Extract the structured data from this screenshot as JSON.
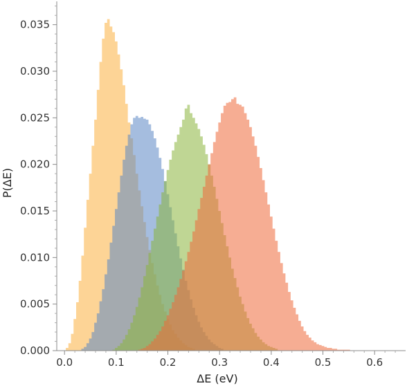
{
  "chart_data": {
    "type": "histogram",
    "title": "",
    "xlabel": "ΔE (eV)",
    "ylabel": "P(ΔE)",
    "xlim": [
      -0.015,
      0.66
    ],
    "ylim": [
      0,
      0.0375
    ],
    "x_ticks": [
      {
        "value": 0.0,
        "label": "0.0"
      },
      {
        "value": 0.1,
        "label": "0.1"
      },
      {
        "value": 0.2,
        "label": "0.2"
      },
      {
        "value": 0.3,
        "label": "0.3"
      },
      {
        "value": 0.4,
        "label": "0.4"
      },
      {
        "value": 0.5,
        "label": "0.5"
      },
      {
        "value": 0.6,
        "label": "0.6"
      }
    ],
    "y_ticks": [
      {
        "value": 0.0,
        "label": "0.000"
      },
      {
        "value": 0.005,
        "label": "0.005"
      },
      {
        "value": 0.01,
        "label": "0.010"
      },
      {
        "value": 0.015,
        "label": "0.015"
      },
      {
        "value": 0.02,
        "label": "0.020"
      },
      {
        "value": 0.025,
        "label": "0.025"
      },
      {
        "value": 0.03,
        "label": "0.030"
      },
      {
        "value": 0.035,
        "label": "0.035"
      }
    ],
    "bin_width": 0.005,
    "opacity": 0.55,
    "series": [
      {
        "color": "#fbb040",
        "bins": [
          [
            0.005,
            0.0003
          ],
          [
            0.01,
            0.0008
          ],
          [
            0.015,
            0.0018
          ],
          [
            0.02,
            0.0034
          ],
          [
            0.025,
            0.0052
          ],
          [
            0.03,
            0.0075
          ],
          [
            0.035,
            0.0102
          ],
          [
            0.04,
            0.0132
          ],
          [
            0.045,
            0.0162
          ],
          [
            0.05,
            0.019
          ],
          [
            0.055,
            0.022
          ],
          [
            0.06,
            0.0248
          ],
          [
            0.065,
            0.028
          ],
          [
            0.07,
            0.031
          ],
          [
            0.075,
            0.0335
          ],
          [
            0.08,
            0.0352
          ],
          [
            0.085,
            0.0356
          ],
          [
            0.09,
            0.0348
          ],
          [
            0.095,
            0.0342
          ],
          [
            0.1,
            0.0332
          ],
          [
            0.105,
            0.0318
          ],
          [
            0.11,
            0.0302
          ],
          [
            0.115,
            0.0285
          ],
          [
            0.12,
            0.0265
          ],
          [
            0.125,
            0.0245
          ],
          [
            0.13,
            0.0228
          ],
          [
            0.135,
            0.021
          ],
          [
            0.14,
            0.019
          ],
          [
            0.145,
            0.0172
          ],
          [
            0.15,
            0.0155
          ],
          [
            0.155,
            0.0138
          ],
          [
            0.16,
            0.0122
          ],
          [
            0.165,
            0.0108
          ],
          [
            0.17,
            0.0094
          ],
          [
            0.175,
            0.0082
          ],
          [
            0.18,
            0.007
          ],
          [
            0.185,
            0.006
          ],
          [
            0.19,
            0.005
          ],
          [
            0.195,
            0.0042
          ],
          [
            0.2,
            0.0034
          ],
          [
            0.205,
            0.0028
          ],
          [
            0.21,
            0.0022
          ],
          [
            0.215,
            0.0018
          ],
          [
            0.22,
            0.0014
          ],
          [
            0.225,
            0.0011
          ],
          [
            0.23,
            0.0008
          ],
          [
            0.235,
            0.0006
          ],
          [
            0.24,
            0.0004
          ],
          [
            0.245,
            0.0003
          ],
          [
            0.25,
            0.0002
          ]
        ]
      },
      {
        "color": "#5b87c5",
        "bins": [
          [
            0.035,
            0.0002
          ],
          [
            0.04,
            0.0004
          ],
          [
            0.045,
            0.0008
          ],
          [
            0.05,
            0.0013
          ],
          [
            0.055,
            0.002
          ],
          [
            0.06,
            0.003
          ],
          [
            0.065,
            0.004
          ],
          [
            0.07,
            0.0053
          ],
          [
            0.075,
            0.0066
          ],
          [
            0.08,
            0.0082
          ],
          [
            0.085,
            0.0098
          ],
          [
            0.09,
            0.0116
          ],
          [
            0.095,
            0.0134
          ],
          [
            0.1,
            0.0152
          ],
          [
            0.105,
            0.017
          ],
          [
            0.11,
            0.0188
          ],
          [
            0.115,
            0.0205
          ],
          [
            0.12,
            0.022
          ],
          [
            0.125,
            0.0232
          ],
          [
            0.13,
            0.0243
          ],
          [
            0.135,
            0.025
          ],
          [
            0.14,
            0.0252
          ],
          [
            0.145,
            0.025
          ],
          [
            0.15,
            0.0251
          ],
          [
            0.155,
            0.0249
          ],
          [
            0.16,
            0.0248
          ],
          [
            0.165,
            0.0243
          ],
          [
            0.17,
            0.0236
          ],
          [
            0.175,
            0.0228
          ],
          [
            0.18,
            0.0218
          ],
          [
            0.185,
            0.0207
          ],
          [
            0.19,
            0.0195
          ],
          [
            0.195,
            0.0182
          ],
          [
            0.2,
            0.0168
          ],
          [
            0.205,
            0.0154
          ],
          [
            0.21,
            0.014
          ],
          [
            0.215,
            0.0126
          ],
          [
            0.22,
            0.0112
          ],
          [
            0.225,
            0.0099
          ],
          [
            0.23,
            0.0087
          ],
          [
            0.235,
            0.0075
          ],
          [
            0.24,
            0.0065
          ],
          [
            0.245,
            0.0055
          ],
          [
            0.25,
            0.0046
          ],
          [
            0.255,
            0.0038
          ],
          [
            0.26,
            0.0031
          ],
          [
            0.265,
            0.0025
          ],
          [
            0.27,
            0.002
          ],
          [
            0.275,
            0.0016
          ],
          [
            0.28,
            0.0012
          ],
          [
            0.285,
            0.0009
          ],
          [
            0.29,
            0.0007
          ],
          [
            0.295,
            0.0005
          ],
          [
            0.3,
            0.0003
          ],
          [
            0.305,
            0.0002
          ]
        ]
      },
      {
        "color": "#8ab43c",
        "bins": [
          [
            0.095,
            0.0001
          ],
          [
            0.1,
            0.0003
          ],
          [
            0.105,
            0.0005
          ],
          [
            0.11,
            0.0008
          ],
          [
            0.115,
            0.0012
          ],
          [
            0.12,
            0.0017
          ],
          [
            0.125,
            0.0023
          ],
          [
            0.13,
            0.003
          ],
          [
            0.135,
            0.0038
          ],
          [
            0.14,
            0.0047
          ],
          [
            0.145,
            0.0057
          ],
          [
            0.15,
            0.0068
          ],
          [
            0.155,
            0.008
          ],
          [
            0.16,
            0.0092
          ],
          [
            0.165,
            0.0105
          ],
          [
            0.17,
            0.0118
          ],
          [
            0.175,
            0.0131
          ],
          [
            0.18,
            0.0144
          ],
          [
            0.185,
            0.0157
          ],
          [
            0.19,
            0.017
          ],
          [
            0.195,
            0.0182
          ],
          [
            0.2,
            0.0194
          ],
          [
            0.205,
            0.0205
          ],
          [
            0.21,
            0.0215
          ],
          [
            0.215,
            0.0224
          ],
          [
            0.22,
            0.0232
          ],
          [
            0.225,
            0.024
          ],
          [
            0.23,
            0.0248
          ],
          [
            0.235,
            0.026
          ],
          [
            0.24,
            0.0264
          ],
          [
            0.245,
            0.0255
          ],
          [
            0.25,
            0.025
          ],
          [
            0.255,
            0.0244
          ],
          [
            0.26,
            0.0238
          ],
          [
            0.265,
            0.023
          ],
          [
            0.27,
            0.0221
          ],
          [
            0.275,
            0.0211
          ],
          [
            0.28,
            0.02
          ],
          [
            0.285,
            0.0188
          ],
          [
            0.29,
            0.0176
          ],
          [
            0.295,
            0.0163
          ],
          [
            0.3,
            0.015
          ],
          [
            0.305,
            0.0137
          ],
          [
            0.31,
            0.0124
          ],
          [
            0.315,
            0.0112
          ],
          [
            0.32,
            0.01
          ],
          [
            0.325,
            0.0088
          ],
          [
            0.33,
            0.0078
          ],
          [
            0.335,
            0.0068
          ],
          [
            0.34,
            0.0058
          ],
          [
            0.345,
            0.005
          ],
          [
            0.35,
            0.0042
          ],
          [
            0.355,
            0.0035
          ],
          [
            0.36,
            0.0029
          ],
          [
            0.365,
            0.0024
          ],
          [
            0.37,
            0.0019
          ],
          [
            0.375,
            0.0015
          ],
          [
            0.38,
            0.0012
          ],
          [
            0.385,
            0.0009
          ],
          [
            0.39,
            0.0007
          ],
          [
            0.395,
            0.0005
          ],
          [
            0.4,
            0.0004
          ],
          [
            0.405,
            0.0003
          ],
          [
            0.41,
            0.0002
          ]
        ]
      },
      {
        "color": "#ef6a3a",
        "bins": [
          [
            0.145,
            0.0001
          ],
          [
            0.15,
            0.0002
          ],
          [
            0.155,
            0.0003
          ],
          [
            0.16,
            0.0005
          ],
          [
            0.165,
            0.0007
          ],
          [
            0.17,
            0.001
          ],
          [
            0.175,
            0.0013
          ],
          [
            0.18,
            0.0017
          ],
          [
            0.185,
            0.0021
          ],
          [
            0.19,
            0.0026
          ],
          [
            0.195,
            0.0032
          ],
          [
            0.2,
            0.0038
          ],
          [
            0.205,
            0.0045
          ],
          [
            0.21,
            0.0052
          ],
          [
            0.215,
            0.006
          ],
          [
            0.22,
            0.0068
          ],
          [
            0.225,
            0.0077
          ],
          [
            0.23,
            0.0086
          ],
          [
            0.235,
            0.0096
          ],
          [
            0.24,
            0.0106
          ],
          [
            0.245,
            0.0117
          ],
          [
            0.25,
            0.0128
          ],
          [
            0.255,
            0.014
          ],
          [
            0.26,
            0.0152
          ],
          [
            0.265,
            0.0164
          ],
          [
            0.27,
            0.0176
          ],
          [
            0.275,
            0.0188
          ],
          [
            0.28,
            0.02
          ],
          [
            0.285,
            0.0212
          ],
          [
            0.29,
            0.0224
          ],
          [
            0.295,
            0.0235
          ],
          [
            0.3,
            0.0245
          ],
          [
            0.305,
            0.0255
          ],
          [
            0.31,
            0.0263
          ],
          [
            0.315,
            0.0266
          ],
          [
            0.32,
            0.0267
          ],
          [
            0.325,
            0.027
          ],
          [
            0.33,
            0.0272
          ],
          [
            0.335,
            0.0265
          ],
          [
            0.34,
            0.0264
          ],
          [
            0.345,
            0.0262
          ],
          [
            0.35,
            0.0255
          ],
          [
            0.355,
            0.0248
          ],
          [
            0.36,
            0.024
          ],
          [
            0.365,
            0.023
          ],
          [
            0.37,
            0.022
          ],
          [
            0.375,
            0.0208
          ],
          [
            0.38,
            0.0196
          ],
          [
            0.385,
            0.0183
          ],
          [
            0.39,
            0.017
          ],
          [
            0.395,
            0.0157
          ],
          [
            0.4,
            0.0144
          ],
          [
            0.405,
            0.0131
          ],
          [
            0.41,
            0.0118
          ],
          [
            0.415,
            0.0106
          ],
          [
            0.42,
            0.0094
          ],
          [
            0.425,
            0.0083
          ],
          [
            0.43,
            0.0073
          ],
          [
            0.435,
            0.0063
          ],
          [
            0.44,
            0.0054
          ],
          [
            0.445,
            0.0046
          ],
          [
            0.45,
            0.0039
          ],
          [
            0.455,
            0.0032
          ],
          [
            0.46,
            0.0026
          ],
          [
            0.465,
            0.0021
          ],
          [
            0.47,
            0.0017
          ],
          [
            0.475,
            0.0014
          ],
          [
            0.48,
            0.0011
          ],
          [
            0.485,
            0.0009
          ],
          [
            0.49,
            0.0007
          ],
          [
            0.495,
            0.0006
          ],
          [
            0.5,
            0.0005
          ],
          [
            0.505,
            0.0004
          ],
          [
            0.51,
            0.0003
          ],
          [
            0.515,
            0.0003
          ],
          [
            0.52,
            0.0002
          ],
          [
            0.525,
            0.0002
          ],
          [
            0.53,
            0.0001
          ],
          [
            0.535,
            0.0001
          ],
          [
            0.54,
            0.0001
          ],
          [
            0.545,
            0.0001
          ],
          [
            0.55,
            0.0001
          ]
        ]
      }
    ],
    "grid": false,
    "legend": "none"
  }
}
